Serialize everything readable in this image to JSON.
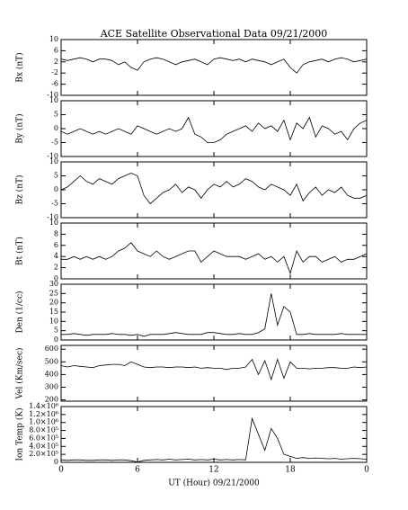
{
  "chart_data": [
    {
      "type": "line",
      "title": "ACE Satellite Observational Data  09/21/2000",
      "ylabel": "Bx (nT)",
      "color": "#000000",
      "x": [
        0,
        0.5,
        1,
        1.5,
        2,
        2.5,
        3,
        3.5,
        4,
        4.5,
        5,
        5.5,
        6,
        6.5,
        7,
        7.5,
        8,
        8.5,
        9,
        9.5,
        10,
        10.5,
        11,
        11.5,
        12,
        12.5,
        13,
        13.5,
        14,
        14.5,
        15,
        15.5,
        16,
        16.5,
        17,
        17.5,
        18,
        18.5,
        19,
        19.5,
        20,
        20.5,
        21,
        21.5,
        22,
        22.5,
        23,
        23.5,
        24
      ],
      "values": [
        3,
        2.5,
        3,
        3.5,
        3,
        2,
        3,
        3,
        2.5,
        1,
        2,
        0,
        -1,
        2,
        3,
        3.5,
        3,
        2,
        1,
        2,
        2.5,
        3,
        2,
        1,
        3,
        3.5,
        3,
        2.5,
        3,
        2,
        3,
        2.5,
        2,
        1,
        2,
        3,
        0,
        -2,
        1,
        2,
        2.5,
        3,
        2,
        3,
        3.5,
        3,
        2,
        2.5,
        3
      ],
      "ylim": [
        -10,
        10
      ],
      "yticks": [
        -10,
        -6,
        -2,
        2,
        6,
        10
      ]
    },
    {
      "type": "line",
      "ylabel": "By (nT)",
      "color": "#000000",
      "x": [
        0,
        0.5,
        1,
        1.5,
        2,
        2.5,
        3,
        3.5,
        4,
        4.5,
        5,
        5.5,
        6,
        6.5,
        7,
        7.5,
        8,
        8.5,
        9,
        9.5,
        10,
        10.5,
        11,
        11.5,
        12,
        12.5,
        13,
        13.5,
        14,
        14.5,
        15,
        15.5,
        16,
        16.5,
        17,
        17.5,
        18,
        18.5,
        19,
        19.5,
        20,
        20.5,
        21,
        21.5,
        22,
        22.5,
        23,
        23.5,
        24
      ],
      "values": [
        -1,
        -2,
        -1,
        0,
        -1,
        -2,
        -1,
        -2,
        -1,
        0,
        -1,
        -2,
        1,
        0,
        -1,
        -2,
        -1,
        0,
        -1,
        0,
        4,
        -2,
        -3,
        -5,
        -5,
        -4,
        -2,
        -1,
        0,
        1,
        -1,
        2,
        0,
        1,
        -1,
        3,
        -4,
        2,
        0,
        4,
        -3,
        1,
        0,
        -2,
        -1,
        -4,
        0,
        2,
        3
      ],
      "ylim": [
        -10,
        10
      ],
      "yticks": [
        -10,
        -5,
        0,
        5,
        10
      ]
    },
    {
      "type": "line",
      "ylabel": "Bz (nT)",
      "color": "#000000",
      "x": [
        0,
        0.5,
        1,
        1.5,
        2,
        2.5,
        3,
        3.5,
        4,
        4.5,
        5,
        5.5,
        6,
        6.5,
        7,
        7.5,
        8,
        8.5,
        9,
        9.5,
        10,
        10.5,
        11,
        11.5,
        12,
        12.5,
        13,
        13.5,
        14,
        14.5,
        15,
        15.5,
        16,
        16.5,
        17,
        17.5,
        18,
        18.5,
        19,
        19.5,
        20,
        20.5,
        21,
        21.5,
        22,
        22.5,
        23,
        23.5,
        24
      ],
      "values": [
        0,
        1,
        3,
        5,
        3,
        2,
        4,
        3,
        2,
        4,
        5,
        6,
        5,
        -2,
        -5,
        -3,
        -1,
        0,
        2,
        -1,
        1,
        0,
        -3,
        0,
        2,
        1,
        3,
        1,
        2,
        4,
        3,
        1,
        0,
        2,
        1,
        0,
        -2,
        2,
        -4,
        -1,
        1,
        -2,
        0,
        -1,
        1,
        -2,
        -3,
        -3,
        -2
      ],
      "ylim": [
        -10,
        10
      ],
      "yticks": [
        -10,
        -5,
        0,
        5,
        10
      ]
    },
    {
      "type": "line",
      "ylabel": "Bt (nT)",
      "color": "#000000",
      "x": [
        0,
        0.5,
        1,
        1.5,
        2,
        2.5,
        3,
        3.5,
        4,
        4.5,
        5,
        5.5,
        6,
        6.5,
        7,
        7.5,
        8,
        8.5,
        9,
        9.5,
        10,
        10.5,
        11,
        11.5,
        12,
        12.5,
        13,
        13.5,
        14,
        14.5,
        15,
        15.5,
        16,
        16.5,
        17,
        17.5,
        18,
        18.5,
        19,
        19.5,
        20,
        20.5,
        21,
        21.5,
        22,
        22.5,
        23,
        23.5,
        24
      ],
      "values": [
        3.5,
        3.5,
        4,
        3.5,
        4,
        3.5,
        4,
        3.5,
        4,
        5,
        5.5,
        6.5,
        5,
        4.5,
        4,
        5,
        4,
        3.5,
        4,
        4.5,
        5,
        5,
        3,
        4,
        5,
        4.5,
        4,
        4,
        4,
        3.5,
        4,
        4.5,
        3.5,
        4,
        3,
        4,
        1,
        5,
        3,
        4,
        4,
        3,
        3.5,
        4,
        3,
        3.5,
        3.5,
        4,
        4.5
      ],
      "ylim": [
        0,
        10
      ],
      "yticks": [
        0,
        2,
        4,
        6,
        8,
        10
      ]
    },
    {
      "type": "line",
      "ylabel": "Den (1/cc)",
      "color": "#000000",
      "x": [
        0,
        0.5,
        1,
        1.5,
        2,
        2.5,
        3,
        3.5,
        4,
        4.5,
        5,
        5.5,
        6,
        6.5,
        7,
        7.5,
        8,
        8.5,
        9,
        9.5,
        10,
        10.5,
        11,
        11.5,
        12,
        12.5,
        13,
        13.5,
        14,
        14.5,
        15,
        15.5,
        16,
        16.5,
        17,
        17.5,
        18,
        18.5,
        19,
        19.5,
        20,
        20.5,
        21,
        21.5,
        22,
        22.5,
        23,
        23.5,
        24
      ],
      "values": [
        3,
        3,
        3.5,
        3,
        2.5,
        3,
        3,
        3,
        3.5,
        3,
        3,
        2.5,
        3,
        2,
        3,
        3,
        3,
        3.5,
        4,
        3.5,
        3,
        3,
        3,
        4,
        4,
        3.5,
        3,
        3,
        3.5,
        3,
        3,
        4,
        6,
        25,
        8,
        18,
        15,
        3,
        3,
        3.5,
        3,
        3,
        3,
        3,
        3.5,
        3,
        3,
        3,
        3
      ],
      "ylim": [
        0,
        30
      ],
      "yticks": [
        0,
        5,
        10,
        15,
        20,
        25,
        30
      ]
    },
    {
      "type": "line",
      "ylabel": "Vel (Km/sec)",
      "color": "#000000",
      "x": [
        0,
        0.5,
        1,
        1.5,
        2,
        2.5,
        3,
        3.5,
        4,
        4.5,
        5,
        5.5,
        6,
        6.5,
        7,
        7.5,
        8,
        8.5,
        9,
        9.5,
        10,
        10.5,
        11,
        11.5,
        12,
        12.5,
        13,
        13.5,
        14,
        14.5,
        15,
        15.5,
        16,
        16.5,
        17,
        17.5,
        18,
        18.5,
        19,
        19.5,
        20,
        20.5,
        21,
        21.5,
        22,
        22.5,
        23,
        23.5,
        24
      ],
      "values": [
        470,
        460,
        470,
        465,
        460,
        455,
        470,
        475,
        480,
        480,
        470,
        500,
        480,
        460,
        455,
        460,
        460,
        455,
        460,
        460,
        455,
        460,
        450,
        455,
        450,
        450,
        440,
        450,
        450,
        460,
        520,
        400,
        510,
        360,
        520,
        370,
        500,
        450,
        450,
        445,
        450,
        450,
        455,
        455,
        450,
        450,
        460,
        455,
        460
      ],
      "ylim": [
        190,
        630
      ],
      "yticks": [
        200,
        300,
        400,
        500,
        600
      ]
    },
    {
      "type": "line",
      "ylabel": "Ion Temp (K)",
      "xlabel": "UT (Hour)  09/21/2000",
      "color": "#000000",
      "x": [
        0,
        0.5,
        1,
        1.5,
        2,
        2.5,
        3,
        3.5,
        4,
        4.5,
        5,
        5.5,
        6,
        6.5,
        7,
        7.5,
        8,
        8.5,
        9,
        9.5,
        10,
        10.5,
        11,
        11.5,
        12,
        12.5,
        13,
        13.5,
        14,
        14.5,
        15,
        15.5,
        16,
        16.5,
        17,
        17.5,
        18,
        18.5,
        19,
        19.5,
        20,
        20.5,
        21,
        21.5,
        22,
        22.5,
        23,
        23.5,
        24
      ],
      "values": [
        60000,
        50000,
        60000,
        60000,
        50000,
        50000,
        60000,
        60000,
        50000,
        60000,
        60000,
        40000,
        10000,
        50000,
        60000,
        70000,
        60000,
        80000,
        60000,
        70000,
        80000,
        60000,
        70000,
        60000,
        80000,
        60000,
        70000,
        60000,
        70000,
        60000,
        1100000,
        700000,
        300000,
        850000,
        600000,
        200000,
        150000,
        100000,
        120000,
        100000,
        110000,
        100000,
        90000,
        100000,
        80000,
        90000,
        100000,
        90000,
        80000
      ],
      "ylim": [
        0,
        1400000
      ],
      "yticks": [
        0,
        {
          "value": 200000,
          "label": "2.0×10⁵"
        },
        {
          "value": 400000,
          "label": "4.0×10⁵"
        },
        {
          "value": 600000,
          "label": "6.0×10⁵"
        },
        {
          "value": 800000,
          "label": "8.0×10⁵"
        },
        {
          "value": 1000000,
          "label": "1.0×10⁶"
        },
        {
          "value": 1200000,
          "label": "1.2×10⁶"
        },
        {
          "value": 1400000,
          "label": "1.4×10⁶"
        }
      ],
      "xlim": [
        0,
        24
      ],
      "xticks": [
        0,
        6,
        12,
        18,
        {
          "value": 24,
          "label": "0"
        }
      ]
    }
  ]
}
